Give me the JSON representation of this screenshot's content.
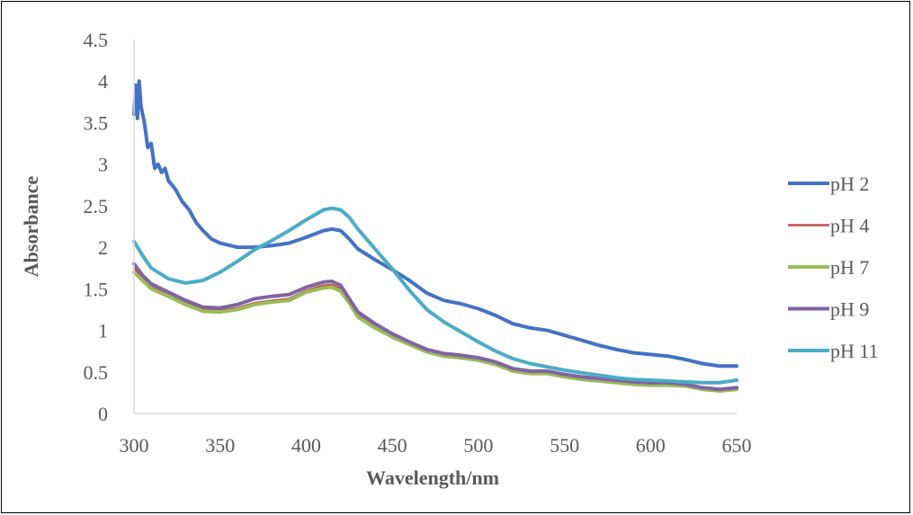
{
  "chart_data": {
    "type": "line",
    "title": "",
    "xlabel": "Wavelength/nm",
    "ylabel": "Absorbance",
    "xlim": [
      300,
      650
    ],
    "ylim": [
      0,
      4.5
    ],
    "x_ticks": [
      "300",
      "350",
      "400",
      "450",
      "500",
      "550",
      "600",
      "650"
    ],
    "y_ticks": [
      "0",
      "0.5",
      "1",
      "1.5",
      "2",
      "2.5",
      "3",
      "3.5",
      "4",
      "4.5"
    ],
    "grid": false,
    "legend_position": "right",
    "series": [
      {
        "name": "pH 2",
        "color": "#4472C4",
        "points": [
          [
            300,
            3.6
          ],
          [
            301,
            3.95
          ],
          [
            302,
            3.55
          ],
          [
            303,
            4.0
          ],
          [
            304,
            3.7
          ],
          [
            306,
            3.5
          ],
          [
            308,
            3.2
          ],
          [
            310,
            3.25
          ],
          [
            312,
            2.95
          ],
          [
            314,
            3.0
          ],
          [
            316,
            2.9
          ],
          [
            318,
            2.95
          ],
          [
            320,
            2.8
          ],
          [
            324,
            2.7
          ],
          [
            328,
            2.55
          ],
          [
            332,
            2.45
          ],
          [
            336,
            2.3
          ],
          [
            340,
            2.2
          ],
          [
            345,
            2.1
          ],
          [
            350,
            2.05
          ],
          [
            360,
            2.0
          ],
          [
            370,
            2.0
          ],
          [
            380,
            2.02
          ],
          [
            390,
            2.05
          ],
          [
            400,
            2.12
          ],
          [
            410,
            2.2
          ],
          [
            415,
            2.22
          ],
          [
            420,
            2.2
          ],
          [
            425,
            2.1
          ],
          [
            430,
            1.98
          ],
          [
            440,
            1.85
          ],
          [
            450,
            1.73
          ],
          [
            460,
            1.6
          ],
          [
            470,
            1.45
          ],
          [
            480,
            1.36
          ],
          [
            490,
            1.32
          ],
          [
            500,
            1.26
          ],
          [
            510,
            1.18
          ],
          [
            520,
            1.08
          ],
          [
            530,
            1.03
          ],
          [
            540,
            1.0
          ],
          [
            550,
            0.94
          ],
          [
            560,
            0.88
          ],
          [
            570,
            0.82
          ],
          [
            580,
            0.77
          ],
          [
            590,
            0.73
          ],
          [
            600,
            0.71
          ],
          [
            610,
            0.69
          ],
          [
            620,
            0.65
          ],
          [
            630,
            0.6
          ],
          [
            640,
            0.57
          ],
          [
            650,
            0.57
          ]
        ]
      },
      {
        "name": "pH 4",
        "color": "#C0504D",
        "points": [
          [
            300,
            1.75
          ],
          [
            305,
            1.62
          ],
          [
            310,
            1.52
          ],
          [
            320,
            1.43
          ],
          [
            330,
            1.33
          ],
          [
            340,
            1.25
          ],
          [
            350,
            1.24
          ],
          [
            360,
            1.27
          ],
          [
            370,
            1.33
          ],
          [
            380,
            1.36
          ],
          [
            390,
            1.38
          ],
          [
            400,
            1.48
          ],
          [
            410,
            1.54
          ],
          [
            415,
            1.55
          ],
          [
            420,
            1.5
          ],
          [
            425,
            1.35
          ],
          [
            430,
            1.18
          ],
          [
            440,
            1.05
          ],
          [
            450,
            0.93
          ],
          [
            460,
            0.84
          ],
          [
            470,
            0.75
          ],
          [
            480,
            0.7
          ],
          [
            490,
            0.68
          ],
          [
            500,
            0.65
          ],
          [
            510,
            0.6
          ],
          [
            520,
            0.52
          ],
          [
            530,
            0.49
          ],
          [
            540,
            0.49
          ],
          [
            550,
            0.45
          ],
          [
            560,
            0.42
          ],
          [
            570,
            0.4
          ],
          [
            580,
            0.38
          ],
          [
            590,
            0.36
          ],
          [
            600,
            0.35
          ],
          [
            610,
            0.35
          ],
          [
            620,
            0.34
          ],
          [
            630,
            0.3
          ],
          [
            640,
            0.28
          ],
          [
            650,
            0.3
          ]
        ]
      },
      {
        "name": "pH 7",
        "color": "#9BBB59",
        "points": [
          [
            300,
            1.7
          ],
          [
            305,
            1.6
          ],
          [
            310,
            1.5
          ],
          [
            320,
            1.41
          ],
          [
            330,
            1.31
          ],
          [
            340,
            1.23
          ],
          [
            350,
            1.22
          ],
          [
            360,
            1.25
          ],
          [
            370,
            1.31
          ],
          [
            380,
            1.34
          ],
          [
            390,
            1.36
          ],
          [
            400,
            1.46
          ],
          [
            410,
            1.51
          ],
          [
            415,
            1.52
          ],
          [
            420,
            1.47
          ],
          [
            425,
            1.33
          ],
          [
            430,
            1.16
          ],
          [
            440,
            1.03
          ],
          [
            450,
            0.92
          ],
          [
            460,
            0.83
          ],
          [
            470,
            0.74
          ],
          [
            480,
            0.69
          ],
          [
            490,
            0.67
          ],
          [
            500,
            0.64
          ],
          [
            510,
            0.59
          ],
          [
            520,
            0.51
          ],
          [
            530,
            0.48
          ],
          [
            540,
            0.48
          ],
          [
            550,
            0.44
          ],
          [
            560,
            0.41
          ],
          [
            570,
            0.39
          ],
          [
            580,
            0.37
          ],
          [
            590,
            0.35
          ],
          [
            600,
            0.34
          ],
          [
            610,
            0.34
          ],
          [
            620,
            0.33
          ],
          [
            630,
            0.29
          ],
          [
            640,
            0.27
          ],
          [
            650,
            0.29
          ]
        ]
      },
      {
        "name": "pH 9",
        "color": "#8064A2",
        "points": [
          [
            300,
            1.8
          ],
          [
            305,
            1.66
          ],
          [
            310,
            1.56
          ],
          [
            320,
            1.46
          ],
          [
            330,
            1.36
          ],
          [
            340,
            1.28
          ],
          [
            350,
            1.27
          ],
          [
            360,
            1.31
          ],
          [
            370,
            1.38
          ],
          [
            380,
            1.41
          ],
          [
            390,
            1.43
          ],
          [
            400,
            1.52
          ],
          [
            410,
            1.58
          ],
          [
            415,
            1.59
          ],
          [
            420,
            1.54
          ],
          [
            425,
            1.38
          ],
          [
            430,
            1.22
          ],
          [
            440,
            1.08
          ],
          [
            450,
            0.96
          ],
          [
            460,
            0.86
          ],
          [
            470,
            0.77
          ],
          [
            480,
            0.72
          ],
          [
            490,
            0.7
          ],
          [
            500,
            0.67
          ],
          [
            510,
            0.62
          ],
          [
            520,
            0.54
          ],
          [
            530,
            0.51
          ],
          [
            540,
            0.51
          ],
          [
            550,
            0.47
          ],
          [
            560,
            0.44
          ],
          [
            570,
            0.42
          ],
          [
            580,
            0.4
          ],
          [
            590,
            0.38
          ],
          [
            600,
            0.37
          ],
          [
            610,
            0.37
          ],
          [
            620,
            0.35
          ],
          [
            630,
            0.31
          ],
          [
            640,
            0.29
          ],
          [
            650,
            0.31
          ]
        ]
      },
      {
        "name": "pH 11",
        "color": "#4BACC6",
        "points": [
          [
            300,
            2.07
          ],
          [
            305,
            1.9
          ],
          [
            310,
            1.75
          ],
          [
            320,
            1.62
          ],
          [
            330,
            1.57
          ],
          [
            340,
            1.6
          ],
          [
            350,
            1.7
          ],
          [
            360,
            1.83
          ],
          [
            370,
            1.97
          ],
          [
            380,
            2.08
          ],
          [
            390,
            2.2
          ],
          [
            400,
            2.33
          ],
          [
            410,
            2.45
          ],
          [
            415,
            2.47
          ],
          [
            420,
            2.45
          ],
          [
            425,
            2.36
          ],
          [
            430,
            2.22
          ],
          [
            440,
            1.98
          ],
          [
            450,
            1.74
          ],
          [
            460,
            1.48
          ],
          [
            470,
            1.25
          ],
          [
            480,
            1.1
          ],
          [
            490,
            0.98
          ],
          [
            500,
            0.86
          ],
          [
            510,
            0.75
          ],
          [
            520,
            0.66
          ],
          [
            530,
            0.6
          ],
          [
            540,
            0.56
          ],
          [
            550,
            0.52
          ],
          [
            560,
            0.49
          ],
          [
            570,
            0.46
          ],
          [
            580,
            0.43
          ],
          [
            590,
            0.41
          ],
          [
            600,
            0.4
          ],
          [
            610,
            0.39
          ],
          [
            620,
            0.38
          ],
          [
            630,
            0.37
          ],
          [
            640,
            0.37
          ],
          [
            650,
            0.4
          ]
        ]
      }
    ]
  }
}
